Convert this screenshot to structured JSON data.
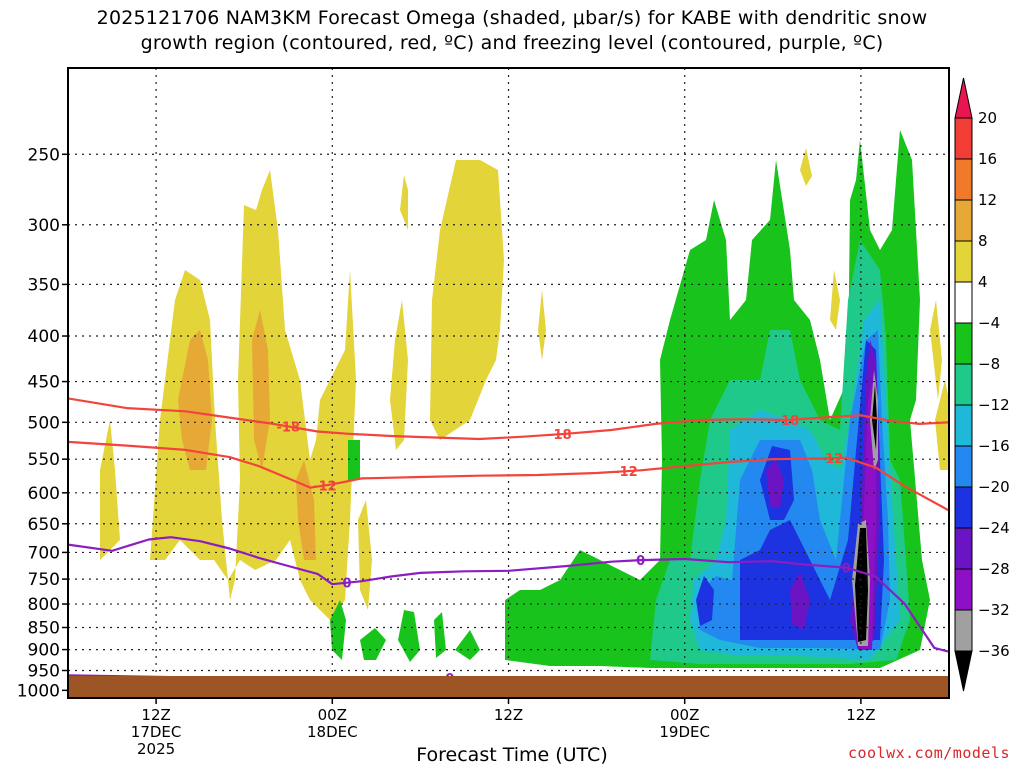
{
  "chart_data": {
    "type": "heatmap",
    "title_line1": "2025121706 NAM3KM Forecast Omega (shaded, μbar/s) for KABE with dendritic snow",
    "title_line2": "growth region (contoured, red, ºC) and freezing level (contoured, purple, ºC)",
    "xlabel": "Forecast Time (UTC)",
    "credit": "coolwx.com/models",
    "y_scale": "log-pressure (inverted)",
    "ylim": [
      1020,
      200
    ],
    "y_ticks": [
      250,
      300,
      350,
      400,
      450,
      500,
      550,
      600,
      650,
      700,
      750,
      800,
      850,
      900,
      950,
      1000
    ],
    "x_range_hours": [
      0,
      60
    ],
    "x_ticks": [
      {
        "hour": 6,
        "line1": "12Z",
        "line2": "17DEC",
        "line3": "2025"
      },
      {
        "hour": 18,
        "line1": "00Z",
        "line2": "18DEC",
        "line3": ""
      },
      {
        "hour": 30,
        "line1": "12Z",
        "line2": "",
        "line3": ""
      },
      {
        "hour": 42,
        "line1": "00Z",
        "line2": "19DEC",
        "line3": ""
      },
      {
        "hour": 54,
        "line1": "12Z",
        "line2": "",
        "line3": ""
      }
    ],
    "grid": true,
    "colorbar": {
      "position": "right",
      "labels": [
        "20",
        "16",
        "12",
        "8",
        "4",
        "−4",
        "−8",
        "−12",
        "−16",
        "−20",
        "−24",
        "−28",
        "−32",
        "−36"
      ],
      "colors": [
        "#e8154f",
        "#f23c36",
        "#f07a2a",
        "#e6a936",
        "#e3d43a",
        "#ffffff",
        "#18c41c",
        "#1ec98a",
        "#1fb8d8",
        "#2389f0",
        "#1d32e0",
        "#6a14c4",
        "#8d0fc6",
        "#a0a0a0",
        "#000000"
      ]
    },
    "contours": [
      {
        "name": "-18",
        "color": "#f2443c",
        "label_text": "-18",
        "points": [
          [
            0,
            470
          ],
          [
            4,
            482
          ],
          [
            8,
            486
          ],
          [
            11,
            494
          ],
          [
            14,
            502
          ],
          [
            17,
            512
          ],
          [
            19,
            515
          ],
          [
            22,
            518
          ],
          [
            25,
            520
          ],
          [
            28,
            522
          ],
          [
            31,
            519
          ],
          [
            34,
            515
          ],
          [
            37,
            510
          ],
          [
            40,
            502
          ],
          [
            43,
            497
          ],
          [
            46,
            496
          ],
          [
            49,
            497
          ],
          [
            52,
            493
          ],
          [
            54,
            491
          ],
          [
            56,
            498
          ],
          [
            58,
            502
          ],
          [
            60,
            500
          ]
        ],
        "label_hours": [
          15,
          33.5,
          49
        ]
      },
      {
        "name": "-12",
        "color": "#f2443c",
        "label_text": "-12",
        "points": [
          [
            0,
            526
          ],
          [
            4,
            531
          ],
          [
            8,
            537
          ],
          [
            11,
            547
          ],
          [
            13,
            560
          ],
          [
            15,
            578
          ],
          [
            16.5,
            592
          ],
          [
            18,
            587
          ],
          [
            20,
            578
          ],
          [
            24,
            576
          ],
          [
            28,
            574
          ],
          [
            32,
            573
          ],
          [
            36,
            570
          ],
          [
            39,
            566
          ],
          [
            42,
            560
          ],
          [
            45,
            554
          ],
          [
            48,
            550
          ],
          [
            51,
            549
          ],
          [
            53,
            548
          ],
          [
            55,
            562
          ],
          [
            57,
            590
          ],
          [
            60,
            628
          ]
        ],
        "label_hours": [
          17.5,
          38,
          52
        ]
      },
      {
        "name": "0",
        "color": "#8b1dc2",
        "label_text": "0",
        "points": [
          [
            0,
            686
          ],
          [
            3,
            697
          ],
          [
            5.5,
            677
          ],
          [
            7,
            673
          ],
          [
            9,
            680
          ],
          [
            11,
            693
          ],
          [
            13,
            710
          ],
          [
            15,
            725
          ],
          [
            17,
            740
          ],
          [
            18,
            760
          ],
          [
            20,
            754
          ],
          [
            22,
            745
          ],
          [
            24,
            738
          ],
          [
            27,
            735
          ],
          [
            30,
            734
          ],
          [
            34,
            725
          ],
          [
            37,
            717
          ],
          [
            39,
            714
          ],
          [
            42,
            712
          ],
          [
            45,
            718
          ],
          [
            48,
            716
          ],
          [
            50,
            722
          ],
          [
            53,
            728
          ],
          [
            55,
            745
          ],
          [
            57,
            800
          ],
          [
            59,
            896
          ],
          [
            60,
            905
          ]
        ],
        "label_hours": [
          19,
          39,
          53
        ]
      },
      {
        "name": "0-surface",
        "color": "#8b1dc2",
        "label_text": "0",
        "points": [
          [
            0,
            962
          ],
          [
            5,
            965
          ],
          [
            10,
            968
          ],
          [
            12,
            977
          ],
          [
            14,
            984
          ],
          [
            18,
            986
          ],
          [
            21,
            985
          ],
          [
            23,
            976
          ],
          [
            26,
            968
          ],
          [
            30,
            975
          ],
          [
            34,
            980
          ],
          [
            37,
            984
          ],
          [
            38,
            985
          ]
        ],
        "label_hours": [
          26
        ]
      }
    ],
    "ground_level_hpa": 1000
  }
}
